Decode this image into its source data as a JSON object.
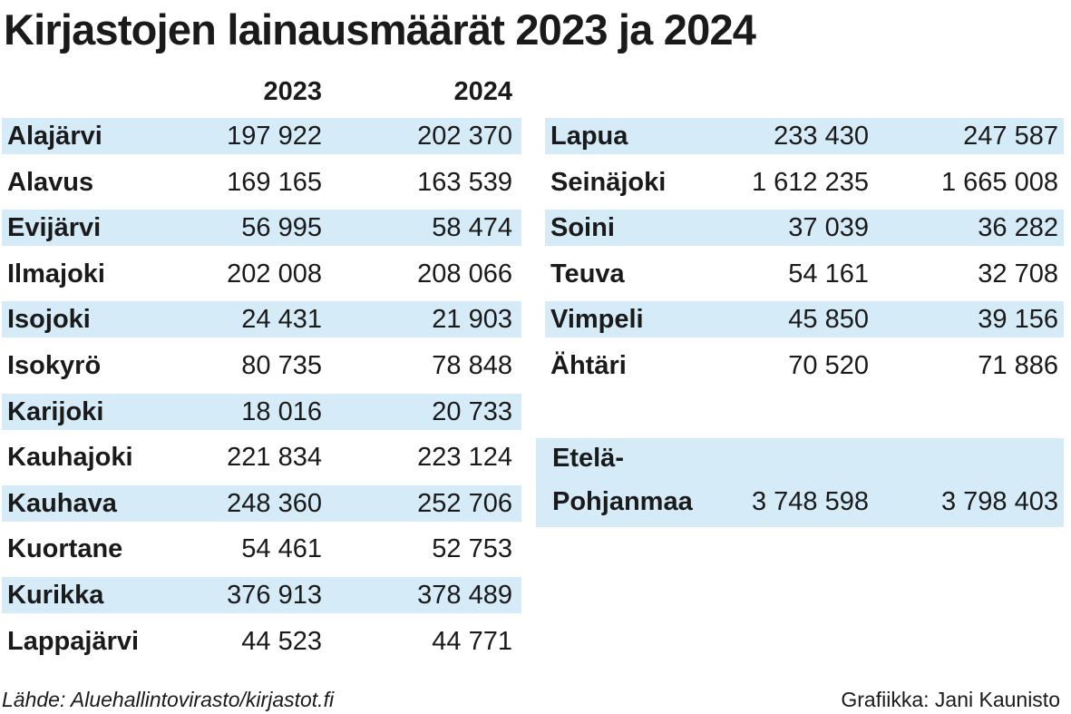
{
  "chart_data": {
    "type": "table",
    "title": "Kirjastojen lainausmäärät 2023 ja 2024",
    "columns": [
      "2023",
      "2024"
    ],
    "rows": [
      {
        "name": "Alajärvi",
        "v2023": "197 922",
        "v2024": "202 370"
      },
      {
        "name": "Alavus",
        "v2023": "169 165",
        "v2024": "163 539"
      },
      {
        "name": "Evijärvi",
        "v2023": "56 995",
        "v2024": "58 474"
      },
      {
        "name": "Ilmajoki",
        "v2023": "202 008",
        "v2024": "208 066"
      },
      {
        "name": "Isojoki",
        "v2023": "24 431",
        "v2024": "21 903"
      },
      {
        "name": "Isokyrö",
        "v2023": "80 735",
        "v2024": "78 848"
      },
      {
        "name": "Karijoki",
        "v2023": "18 016",
        "v2024": "20 733"
      },
      {
        "name": "Kauhajoki",
        "v2023": "221 834",
        "v2024": "223 124"
      },
      {
        "name": "Kauhava",
        "v2023": "248 360",
        "v2024": "252 706"
      },
      {
        "name": "Kuortane",
        "v2023": "54 461",
        "v2024": "52 753"
      },
      {
        "name": "Kurikka",
        "v2023": "376 913",
        "v2024": "378 489"
      },
      {
        "name": "Lappajärvi",
        "v2023": "44 523",
        "v2024": "44 771"
      },
      {
        "name": "Lapua",
        "v2023": "233 430",
        "v2024": "247 587"
      },
      {
        "name": "Seinäjoki",
        "v2023": "1 612 235",
        "v2024": "1 665 008"
      },
      {
        "name": "Soini",
        "v2023": "37 039",
        "v2024": "36 282"
      },
      {
        "name": "Teuva",
        "v2023": "54 161",
        "v2024": "32 708"
      },
      {
        "name": "Vimpeli",
        "v2023": "45 850",
        "v2024": "39 156"
      },
      {
        "name": "Ähtäri",
        "v2023": "70 520",
        "v2024": "71 886"
      }
    ],
    "total": {
      "name_line1": "Etelä-",
      "name_line2": "Pohjanmaa",
      "v2023": "3 748 598",
      "v2024": "3 798 403"
    }
  },
  "footer": {
    "source": "Lähde: Aluehallintovirasto/kirjastot.fi",
    "credit": "Grafiikka: Jani Kaunisto"
  },
  "colors": {
    "stripe": "#d6ebf8",
    "text": "#1a1a1a"
  }
}
